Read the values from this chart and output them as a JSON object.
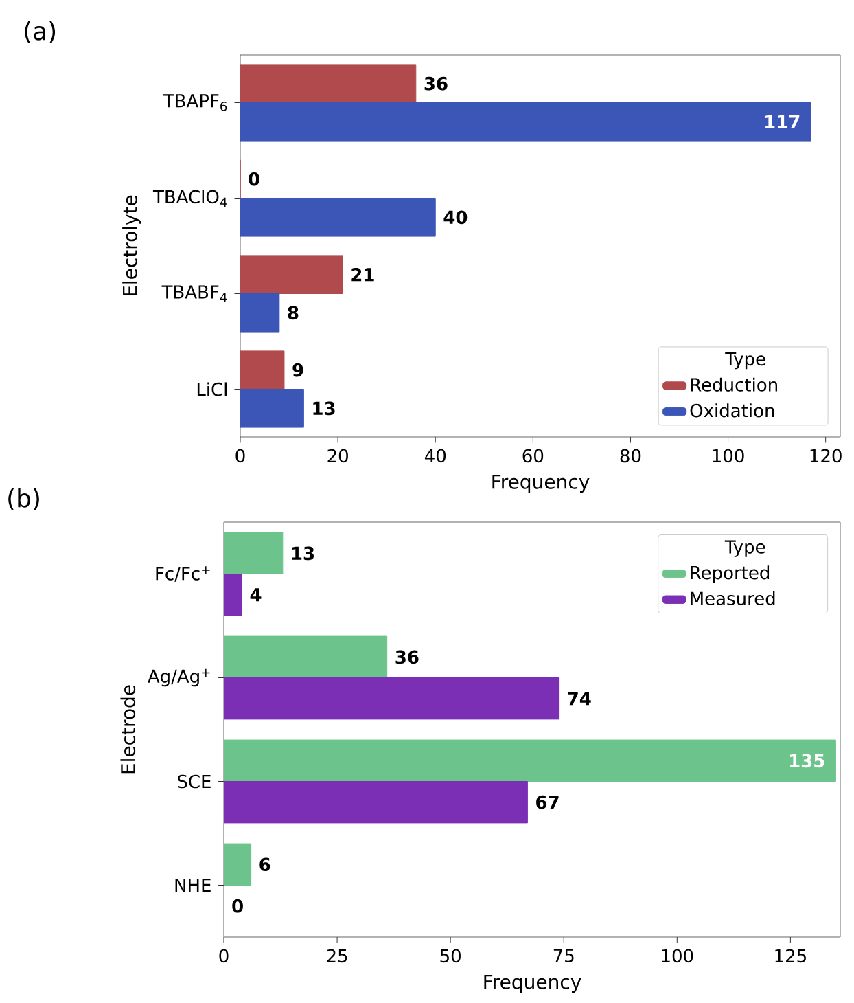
{
  "chart_data": [
    {
      "type": "bar",
      "orientation": "horizontal",
      "annotations": [
        "(a)"
      ],
      "xlabel": "Frequency",
      "ylabel": "Electrolyte",
      "legend_title": "Type",
      "legend": "bottom right",
      "data_labels": true,
      "categories": [
        "TBAPF$_{6}$",
        "TBAClO$_{4}$",
        "TBABF$_{4}$",
        "LiCl"
      ],
      "series": [
        {
          "name": "Reduction",
          "color": "#b04a4c",
          "values": [
            36,
            0,
            21,
            9
          ]
        },
        {
          "name": "Oxidation",
          "color": "#3b56b6",
          "values": [
            117,
            40,
            8,
            13
          ]
        }
      ],
      "xlim": [
        0,
        123
      ],
      "xticks": [
        0,
        20,
        40,
        60,
        80,
        100,
        120
      ]
    },
    {
      "type": "bar",
      "orientation": "horizontal",
      "annotations": [
        "(b)"
      ],
      "xlabel": "Frequency",
      "ylabel": "Electrode",
      "legend_title": "Type",
      "legend": "top right",
      "data_labels": true,
      "categories": [
        "Fc/Fc$^{+}$",
        "Ag/Ag$^{+}$",
        "SCE",
        "NHE"
      ],
      "series": [
        {
          "name": "Reported",
          "color": "#6cc48c",
          "values": [
            13,
            36,
            135,
            6
          ]
        },
        {
          "name": "Measured",
          "color": "#7a2fb4",
          "values": [
            4,
            74,
            67,
            0
          ]
        }
      ],
      "xlim": [
        0,
        136
      ],
      "xticks": [
        0,
        25,
        50,
        75,
        100,
        125
      ]
    }
  ]
}
